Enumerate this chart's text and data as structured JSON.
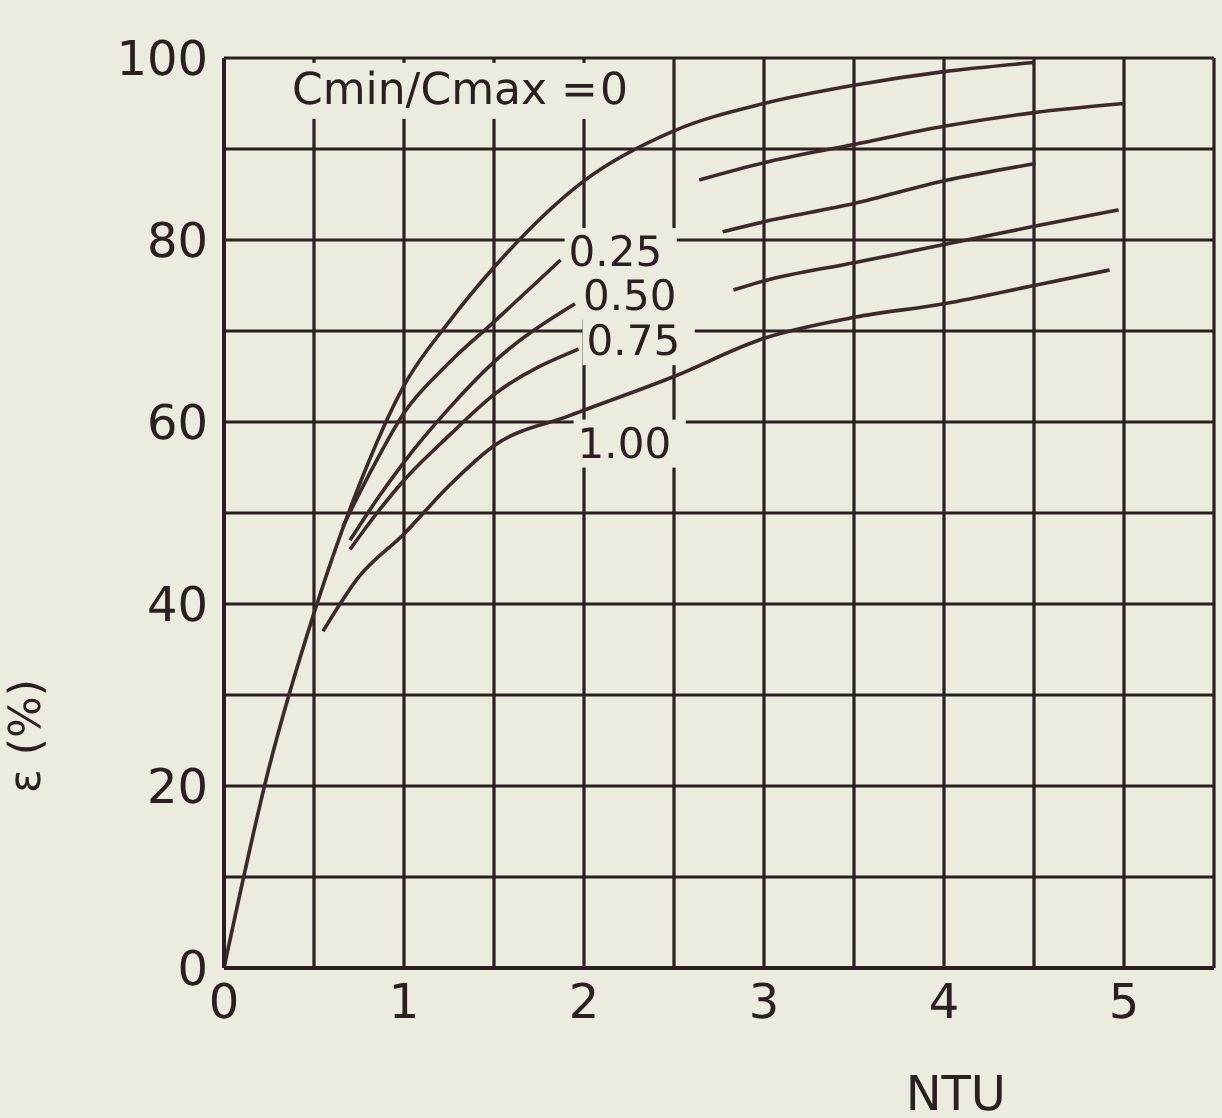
{
  "chart_data": {
    "type": "line",
    "xlabel": "NTU",
    "ylabel": "ε (%)",
    "legend_title": "Cmin/Cmax =",
    "xlim": [
      0,
      5.5
    ],
    "ylim": [
      0,
      100
    ],
    "xticks": [
      0,
      {
        "value": 0.5,
        "label": null
      },
      1,
      {
        "value": 1.5,
        "label": null
      },
      2,
      {
        "value": 2.5,
        "label": null
      },
      3,
      {
        "value": 3.5,
        "label": null
      },
      4,
      {
        "value": 4.5,
        "label": null
      },
      5
    ],
    "yticks": [
      0,
      {
        "value": 10,
        "label": null
      },
      20,
      {
        "value": 30,
        "label": null
      },
      40,
      {
        "value": 50,
        "label": null
      },
      60,
      {
        "value": 70,
        "label": null
      },
      80,
      {
        "value": 90,
        "label": null
      },
      100
    ],
    "grid": true,
    "legend": false,
    "marker": "none",
    "line_style": "solid",
    "series": [
      {
        "name": "0",
        "color": "#3a2a2a",
        "x": [
          0,
          0.25,
          0.5,
          0.75,
          1,
          1.25,
          1.5,
          2,
          2.5,
          3,
          3.5,
          4,
          4.5
        ],
        "values": [
          0,
          22,
          39,
          53,
          64,
          71,
          77,
          86.5,
          92,
          95,
          97,
          98.5,
          99.5
        ]
      },
      {
        "name": "0.25",
        "color": "#3a2a2a",
        "x": [
          0.66,
          0.8,
          1,
          1.25,
          1.5,
          1.87,
          2.2,
          2.64,
          3,
          3.5,
          4,
          4.5,
          5
        ],
        "values": [
          48.5,
          54,
          61,
          66.5,
          71,
          77.8,
          null,
          86.6,
          88.5,
          90.5,
          92.5,
          94,
          95
        ]
      },
      {
        "name": "0.50",
        "color": "#3a2a2a",
        "x": [
          0.7,
          0.85,
          1,
          1.25,
          1.5,
          1.95,
          2.3,
          2.77,
          3,
          3.5,
          4,
          4.51
        ],
        "values": [
          47,
          51.5,
          55.6,
          61.5,
          66.6,
          73,
          null,
          80.9,
          82,
          84,
          86.5,
          88.4
        ]
      },
      {
        "name": "0.75",
        "color": "#3a2a2a",
        "x": [
          0.7,
          0.85,
          1,
          1.25,
          1.5,
          1.97,
          2.4,
          2.83,
          3,
          3.5,
          4,
          4.5,
          4.97
        ],
        "values": [
          46,
          50,
          53.6,
          58.5,
          63,
          68,
          null,
          74.5,
          75.5,
          77.5,
          79.5,
          81.5,
          83.3
        ]
      },
      {
        "name": "1.00",
        "color": "#3a2a2a",
        "x": [
          0.55,
          0.75,
          1,
          1.25,
          1.5,
          1.92,
          2.5,
          3,
          3.5,
          4,
          4.5,
          4.92
        ],
        "values": [
          37,
          43,
          47.7,
          53,
          57.4,
          60.7,
          65,
          69.2,
          71.5,
          73,
          75,
          76.7
        ]
      }
    ]
  }
}
